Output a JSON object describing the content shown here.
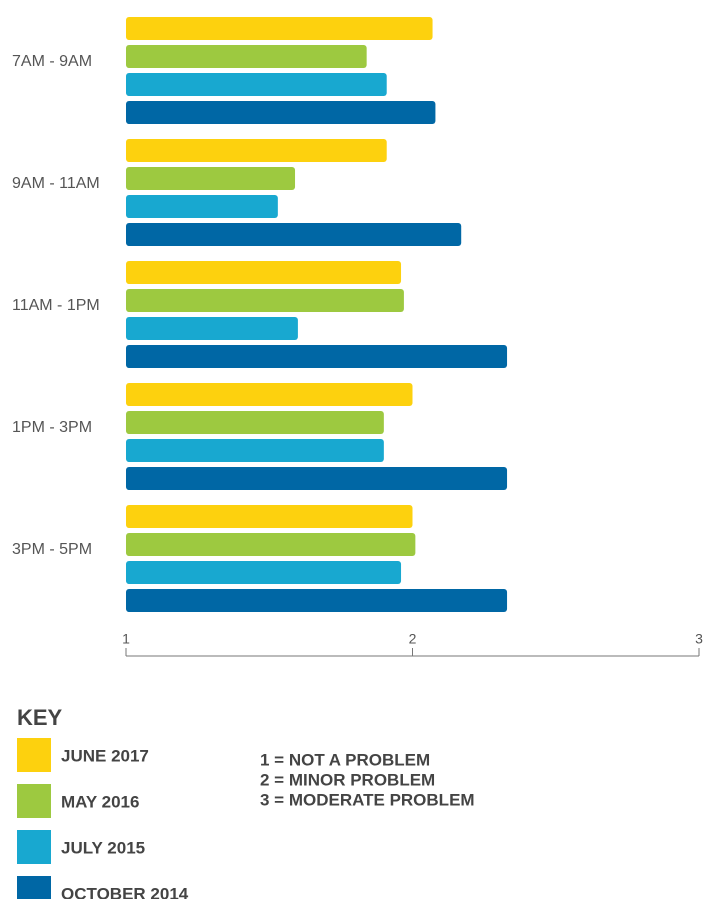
{
  "chart_data": {
    "type": "hbar",
    "categories": [
      "7AM - 9AM",
      "9AM - 11AM",
      "11AM - 1PM",
      "1PM - 3PM",
      "3PM - 5PM"
    ],
    "series": [
      {
        "name": "JUNE 2017",
        "color": "#fdd10e",
        "values": [
          2.07,
          1.91,
          1.96,
          2.0,
          2.0
        ]
      },
      {
        "name": "MAY 2016",
        "color": "#9dc940",
        "values": [
          1.84,
          1.59,
          1.97,
          1.9,
          2.01
        ]
      },
      {
        "name": "JULY 2015",
        "color": "#18a8d0",
        "values": [
          1.91,
          1.53,
          1.6,
          1.9,
          1.96
        ]
      },
      {
        "name": "OCTOBER 2014",
        "color": "#0067a5",
        "values": [
          2.08,
          2.17,
          2.33,
          2.33,
          2.33
        ]
      }
    ],
    "xlim": [
      1,
      3
    ],
    "xticks": [
      1,
      2,
      3
    ],
    "legend_title": "KEY",
    "notes": [
      "1 = NOT A PROBLEM",
      "2 = MINOR PROBLEM",
      "3 = MODERATE PROBLEM"
    ]
  }
}
